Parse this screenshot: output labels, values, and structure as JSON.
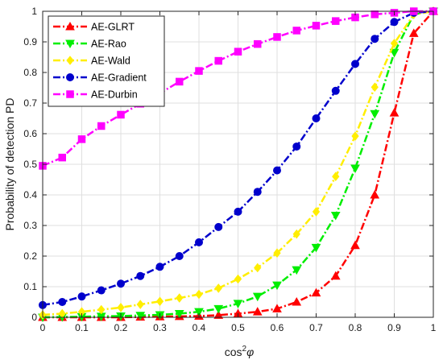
{
  "chart_data": {
    "type": "line",
    "title": "",
    "xlabel_base": "cos",
    "xlabel_sup": "2",
    "xlabel_sym": "φ",
    "ylabel": "Probability of detection PD",
    "xlim": [
      0,
      1
    ],
    "ylim": [
      0,
      1
    ],
    "grid": true,
    "legend_position": "top-left",
    "x": [
      0,
      0.05,
      0.1,
      0.15,
      0.2,
      0.25,
      0.3,
      0.35,
      0.4,
      0.45,
      0.5,
      0.55,
      0.6,
      0.65,
      0.7,
      0.75,
      0.8,
      0.85,
      0.9,
      0.95,
      1
    ],
    "xticks": [
      0,
      0.1,
      0.2,
      0.3,
      0.4,
      0.5,
      0.6,
      0.7,
      0.8,
      0.9,
      1
    ],
    "xtick_labels": [
      "0",
      "0.1",
      "0.2",
      "0.3",
      "0.4",
      "0.5",
      "0.6",
      "0.7",
      "0.8",
      "0.9",
      "1"
    ],
    "yticks": [
      0,
      0.1,
      0.2,
      0.3,
      0.4,
      0.5,
      0.6,
      0.7,
      0.8,
      0.9,
      1
    ],
    "ytick_labels": [
      "0",
      "0.1",
      "0.2",
      "0.3",
      "0.4",
      "0.5",
      "0.6",
      "0.7",
      "0.8",
      "0.9",
      "1"
    ],
    "series": [
      {
        "name": "AE-GLRT",
        "color": "#ff0000",
        "marker": "triangle-up",
        "values": [
          0.0,
          0.0,
          0.0,
          0.0,
          0.0,
          0.001,
          0.002,
          0.003,
          0.004,
          0.007,
          0.012,
          0.018,
          0.028,
          0.05,
          0.08,
          0.135,
          0.235,
          0.4,
          0.668,
          0.928,
          1.0
        ]
      },
      {
        "name": "AE-Rao",
        "color": "#00ee00",
        "marker": "triangle-down",
        "values": [
          0.0,
          0.001,
          0.002,
          0.003,
          0.004,
          0.006,
          0.008,
          0.012,
          0.018,
          0.028,
          0.045,
          0.068,
          0.105,
          0.155,
          0.228,
          0.333,
          0.487,
          0.665,
          0.865,
          0.99,
          1.0
        ]
      },
      {
        "name": "AE-Wald",
        "color": "#ffee00",
        "marker": "diamond",
        "values": [
          0.008,
          0.012,
          0.018,
          0.025,
          0.032,
          0.042,
          0.052,
          0.063,
          0.075,
          0.095,
          0.125,
          0.162,
          0.21,
          0.272,
          0.345,
          0.46,
          0.592,
          0.752,
          0.895,
          0.99,
          1.0
        ]
      },
      {
        "name": "AE-Gradient",
        "color": "#0000cc",
        "marker": "circle",
        "values": [
          0.04,
          0.05,
          0.068,
          0.088,
          0.11,
          0.135,
          0.165,
          0.2,
          0.245,
          0.295,
          0.345,
          0.41,
          0.48,
          0.558,
          0.65,
          0.74,
          0.828,
          0.91,
          0.965,
          0.995,
          1.0
        ]
      },
      {
        "name": "AE-Durbin",
        "color": "#ff00ff",
        "marker": "square",
        "values": [
          0.495,
          0.522,
          0.582,
          0.625,
          0.662,
          0.698,
          0.732,
          0.77,
          0.805,
          0.838,
          0.868,
          0.893,
          0.916,
          0.937,
          0.953,
          0.968,
          0.98,
          0.99,
          0.995,
          1.0,
          1.0
        ]
      }
    ]
  }
}
